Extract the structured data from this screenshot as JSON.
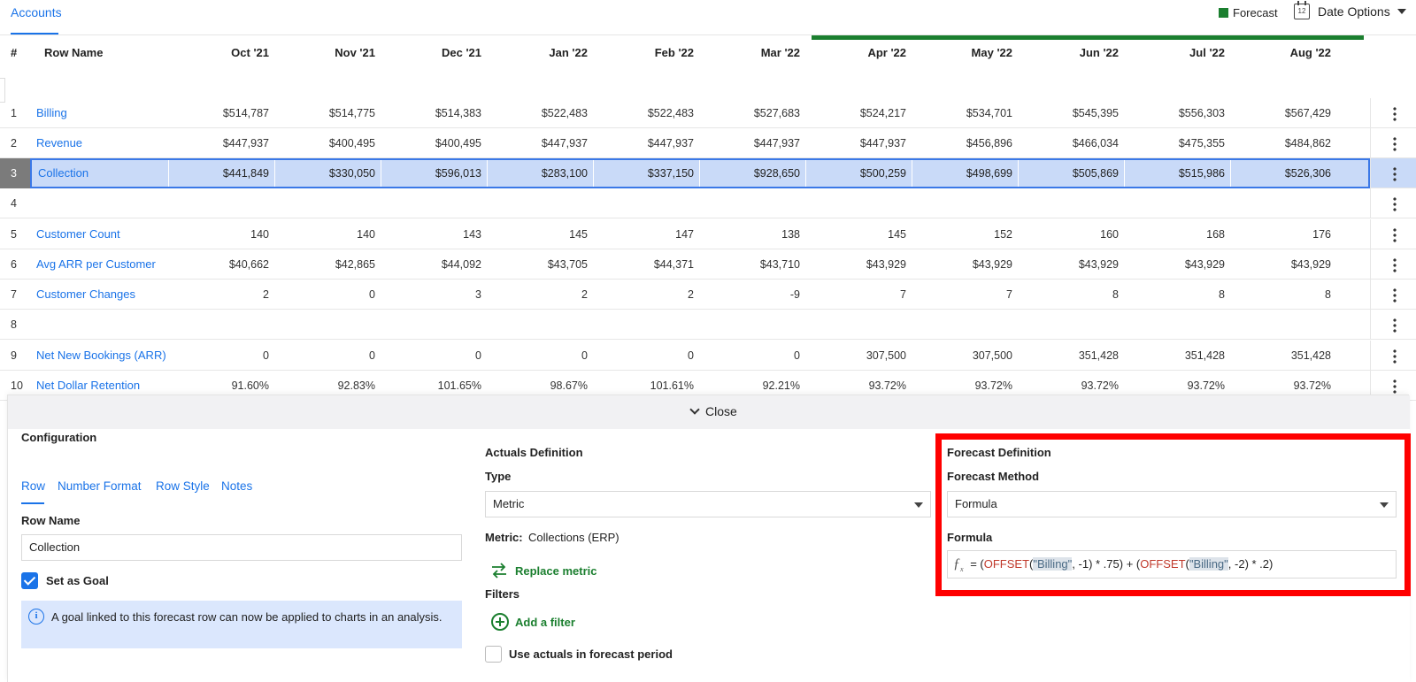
{
  "top": {
    "tab": "Accounts",
    "legend_label": "Forecast",
    "legend_color": "#1b7f2f",
    "date_options_label": "Date Options",
    "calendar_day": "12"
  },
  "table": {
    "headers": {
      "index": "#",
      "row_name": "Row Name",
      "months": [
        "Oct '21",
        "Nov '21",
        "Dec '21",
        "Jan '22",
        "Feb '22",
        "Mar '22",
        "Apr '22",
        "May '22",
        "Jun '22",
        "Jul '22",
        "Aug '22"
      ]
    },
    "rows": [
      {
        "idx": "1",
        "name": "Billing",
        "values": [
          "$514,787",
          "$514,775",
          "$514,383",
          "$522,483",
          "$522,483",
          "$527,683",
          "$524,217",
          "$534,701",
          "$545,395",
          "$556,303",
          "$567,429"
        ]
      },
      {
        "idx": "2",
        "name": "Revenue",
        "values": [
          "$447,937",
          "$400,495",
          "$400,495",
          "$447,937",
          "$447,937",
          "$447,937",
          "$447,937",
          "$456,896",
          "$466,034",
          "$475,355",
          "$484,862"
        ]
      },
      {
        "idx": "3",
        "name": "Collection",
        "values": [
          "$441,849",
          "$330,050",
          "$596,013",
          "$283,100",
          "$337,150",
          "$928,650",
          "$500,259",
          "$498,699",
          "$505,869",
          "$515,986",
          "$526,306"
        ]
      },
      {
        "idx": "4",
        "name": "",
        "values": [
          "",
          "",
          "",
          "",
          "",
          "",
          "",
          "",
          "",
          "",
          ""
        ]
      },
      {
        "idx": "5",
        "name": "Customer Count",
        "values": [
          "140",
          "140",
          "143",
          "145",
          "147",
          "138",
          "145",
          "152",
          "160",
          "168",
          "176"
        ]
      },
      {
        "idx": "6",
        "name": "Avg ARR per Customer",
        "values": [
          "$40,662",
          "$42,865",
          "$44,092",
          "$43,705",
          "$44,371",
          "$43,710",
          "$43,929",
          "$43,929",
          "$43,929",
          "$43,929",
          "$43,929"
        ]
      },
      {
        "idx": "7",
        "name": "Customer Changes",
        "values": [
          "2",
          "0",
          "3",
          "2",
          "2",
          "-9",
          "7",
          "7",
          "8",
          "8",
          "8"
        ]
      },
      {
        "idx": "8",
        "name": "",
        "values": [
          "",
          "",
          "",
          "",
          "",
          "",
          "",
          "",
          "",
          "",
          ""
        ]
      },
      {
        "idx": "9",
        "name": "Net New Bookings (ARR)",
        "values": [
          "0",
          "0",
          "0",
          "0",
          "0",
          "0",
          "307,500",
          "307,500",
          "351,428",
          "351,428",
          "351,428"
        ]
      },
      {
        "idx": "10",
        "name": "Net Dollar Retention",
        "values": [
          "91.60%",
          "92.83%",
          "101.65%",
          "98.67%",
          "101.61%",
          "92.21%",
          "93.72%",
          "93.72%",
          "93.72%",
          "93.72%",
          "93.72%"
        ]
      }
    ]
  },
  "panel": {
    "close_label": "Close",
    "configuration": {
      "title": "Configuration",
      "tabs": [
        "Row",
        "Number Format",
        "Row Style",
        "Notes"
      ],
      "row_name_label": "Row Name",
      "row_name_value": "Collection",
      "goal_label": "Set as Goal",
      "goal_checked": true,
      "info_text": "A goal linked to this forecast row can now be applied to charts in an analysis."
    },
    "actuals": {
      "title": "Actuals Definition",
      "type_label": "Type",
      "type_value": "Metric",
      "metric_label": "Metric:",
      "metric_value": "Collections (ERP)",
      "replace_label": "Replace metric",
      "filters_label": "Filters",
      "add_filter_label": "Add a filter",
      "use_actuals_label": "Use actuals in forecast period"
    },
    "forecast": {
      "title": "Forecast Definition",
      "method_label": "Forecast Method",
      "method_value": "Formula",
      "formula_label": "Formula",
      "formula_parts": {
        "eq": "= (",
        "fn1": "OFFSET",
        "open1": "(",
        "ref1": "\"Billing\"",
        "args1": ", -1) * .75) + (",
        "fn2": "OFFSET",
        "open2": "(",
        "ref2": "\"Billing\"",
        "args2": ", -2) * .2)"
      }
    }
  }
}
